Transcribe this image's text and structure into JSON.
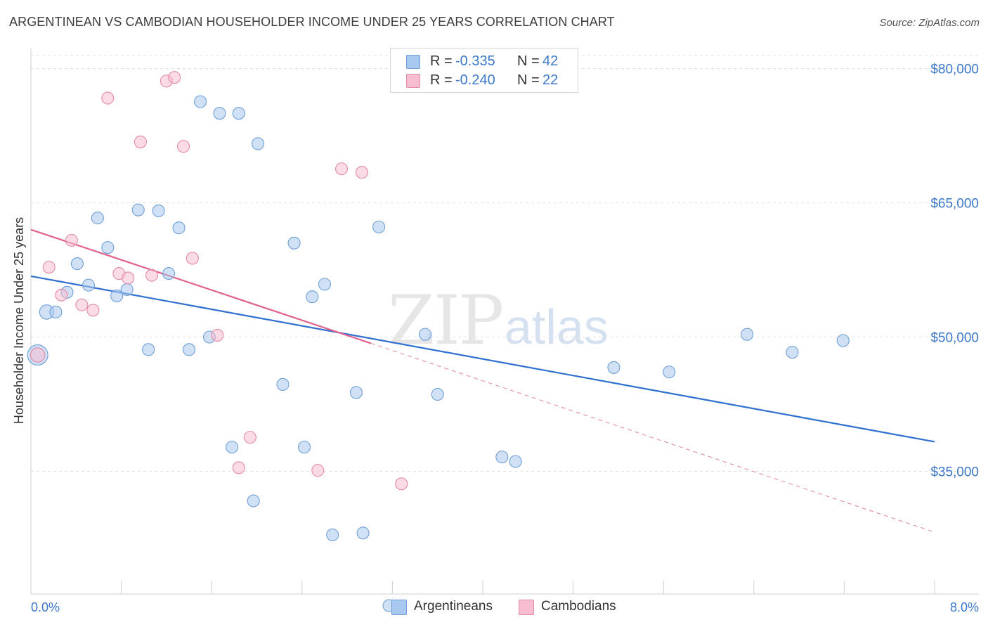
{
  "title": "ARGENTINEAN VS CAMBODIAN HOUSEHOLDER INCOME UNDER 25 YEARS CORRELATION CHART",
  "source": "Source: ZipAtlas.com",
  "watermark": {
    "zip": "ZIP",
    "atlas": "atlas"
  },
  "legend_top": [
    {
      "r_label": "R =",
      "r_value": "-0.335",
      "n_label": "N =",
      "n_value": "42",
      "color": "#a9c8ef",
      "border": "#6f9fd8"
    },
    {
      "r_label": "R =",
      "r_value": "-0.240",
      "n_label": "N =",
      "n_value": "22",
      "color": "#f7bdd0",
      "border": "#e48aa8"
    }
  ],
  "legend_bottom": [
    "Argentineans",
    "Cambodians"
  ],
  "chart_data": {
    "type": "scatter",
    "title": "ARGENTINEAN VS CAMBODIAN HOUSEHOLDER INCOME UNDER 25 YEARS CORRELATION CHART",
    "xlabel": "",
    "ylabel": "Householder Income Under 25 years",
    "xlim": [
      0.0,
      8.0
    ],
    "ylim": [
      20000,
      81500
    ],
    "x_tick_labels": [
      "0.0%",
      "8.0%"
    ],
    "y_ticks": [
      35000,
      50000,
      65000,
      80000
    ],
    "y_tick_labels": [
      "$35,000",
      "$50,000",
      "$65,000",
      "$80,000"
    ],
    "grid": true,
    "legend_placement": "top-center",
    "series": [
      {
        "name": "Argentineans",
        "color": "#a9c8ef",
        "edge": "#6f9fd8",
        "trend_color": "#2f6fcf",
        "points": [
          [
            0.06,
            48000,
            1.7
          ],
          [
            0.14,
            52800,
            1.2
          ],
          [
            0.22,
            52800,
            1.0
          ],
          [
            0.32,
            55000,
            1.0
          ],
          [
            0.41,
            58200,
            1.0
          ],
          [
            0.51,
            55800,
            1.0
          ],
          [
            0.59,
            63300,
            1.0
          ],
          [
            0.68,
            60000,
            1.0
          ],
          [
            0.76,
            54600,
            1.0
          ],
          [
            0.85,
            55300,
            1.0
          ],
          [
            0.95,
            64200,
            1.0
          ],
          [
            1.04,
            48600,
            1.0
          ],
          [
            1.13,
            64100,
            1.0
          ],
          [
            1.22,
            57100,
            1.0
          ],
          [
            1.31,
            62200,
            1.0
          ],
          [
            1.4,
            48600,
            1.0
          ],
          [
            1.5,
            76300,
            1.0
          ],
          [
            1.58,
            50000,
            1.0
          ],
          [
            1.67,
            75000,
            1.0
          ],
          [
            1.78,
            37700,
            1.0
          ],
          [
            1.84,
            75000,
            1.0
          ],
          [
            1.97,
            31700,
            1.0
          ],
          [
            2.01,
            71600,
            1.0
          ],
          [
            2.23,
            44700,
            1.0
          ],
          [
            2.33,
            60500,
            1.0
          ],
          [
            2.42,
            37700,
            1.0
          ],
          [
            2.49,
            54500,
            1.0
          ],
          [
            2.6,
            55900,
            1.0
          ],
          [
            2.67,
            27900,
            1.0
          ],
          [
            2.88,
            43800,
            1.0
          ],
          [
            2.94,
            28100,
            1.0
          ],
          [
            3.08,
            62300,
            1.0
          ],
          [
            3.17,
            20000,
            1.0
          ],
          [
            3.49,
            50300,
            1.0
          ],
          [
            3.6,
            43600,
            1.0
          ],
          [
            4.17,
            36600,
            1.0
          ],
          [
            4.29,
            36100,
            1.0
          ],
          [
            5.16,
            46600,
            1.0
          ],
          [
            5.65,
            46100,
            1.0
          ],
          [
            6.34,
            50300,
            1.0
          ],
          [
            6.74,
            48300,
            1.0
          ],
          [
            7.19,
            49600,
            1.0
          ]
        ],
        "trend": {
          "x": [
            0.0,
            8.0
          ],
          "y": [
            56800,
            38300
          ]
        }
      },
      {
        "name": "Cambodians",
        "color": "#f7bdd0",
        "edge": "#e48aa8",
        "trend_color": "#e0608f",
        "points": [
          [
            0.06,
            48000,
            1.2
          ],
          [
            0.16,
            57800,
            1.0
          ],
          [
            0.27,
            54700,
            1.0
          ],
          [
            0.36,
            60800,
            1.0
          ],
          [
            0.45,
            53600,
            1.0
          ],
          [
            0.55,
            53000,
            1.0
          ],
          [
            0.68,
            76700,
            1.0
          ],
          [
            0.78,
            57100,
            1.0
          ],
          [
            0.86,
            56600,
            1.0
          ],
          [
            0.97,
            71800,
            1.0
          ],
          [
            1.07,
            56900,
            1.0
          ],
          [
            1.2,
            78600,
            1.0
          ],
          [
            1.27,
            79000,
            1.0
          ],
          [
            1.35,
            71300,
            1.0
          ],
          [
            1.43,
            58800,
            1.0
          ],
          [
            1.65,
            50200,
            1.0
          ],
          [
            1.84,
            35400,
            1.0
          ],
          [
            1.94,
            38800,
            1.0
          ],
          [
            2.54,
            35100,
            1.0
          ],
          [
            2.75,
            68800,
            1.0
          ],
          [
            2.93,
            68400,
            1.0
          ],
          [
            3.28,
            33600,
            1.0
          ]
        ],
        "trend": {
          "x": [
            0.0,
            3.01
          ],
          "y": [
            62000,
            49300
          ]
        },
        "trend_extension": {
          "x": [
            3.01,
            8.0
          ],
          "y": [
            49300,
            28200
          ]
        }
      }
    ]
  }
}
